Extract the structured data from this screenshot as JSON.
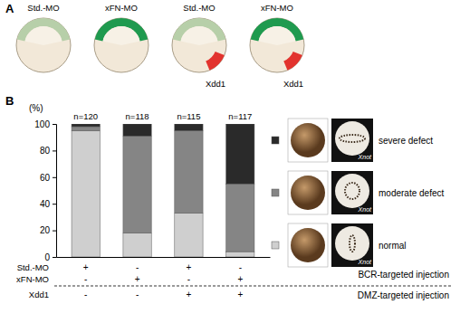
{
  "chart_data": {
    "type": "bar",
    "stacked": true,
    "categories": [
      null,
      null,
      null,
      null
    ],
    "series": [
      {
        "name": "normal",
        "color": "#cfcfcf",
        "values": [
          95,
          18,
          33,
          4
        ]
      },
      {
        "name": "moderate defect",
        "color": "#858585",
        "values": [
          3,
          73,
          62,
          51
        ]
      },
      {
        "name": "severe defect",
        "color": "#2a2a2a",
        "values": [
          2,
          9,
          5,
          45
        ]
      }
    ],
    "ylim": [
      0,
      100
    ],
    "yticks": [
      0,
      20,
      40,
      60,
      80,
      100
    ],
    "y_label": "(%)",
    "n_labels": [
      "n=120",
      "n=118",
      "n=115",
      "n=117"
    ],
    "legend": "right",
    "legend_image_label": "Xnot",
    "condition_groups": [
      {
        "label": "BCR-targeted injection",
        "conditions": [
          {
            "name": "Std.-MO",
            "values": [
              "+",
              "-",
              "+",
              "-"
            ]
          },
          {
            "name": "xFN-MO",
            "values": [
              "-",
              "+",
              "-",
              "+"
            ]
          }
        ]
      },
      {
        "label": "DMZ-targeted injection",
        "conditions": [
          {
            "name": "Xdd1",
            "values": [
              "-",
              "-",
              "+",
              "+"
            ]
          }
        ]
      }
    ]
  },
  "figure": {
    "panel_labels": [
      "A",
      "B"
    ],
    "embryos": [
      {
        "label": "Std.-MO",
        "color": "#b7cfa9"
      },
      {
        "label": "xFN-MO",
        "color": "#1f9a4f"
      },
      {
        "label": "Std.-MO",
        "color": "#b7cfa9",
        "injection": "Xdd1"
      },
      {
        "label": "xFN-MO",
        "color": "#1f9a4f",
        "injection": "Xdd1"
      }
    ]
  }
}
